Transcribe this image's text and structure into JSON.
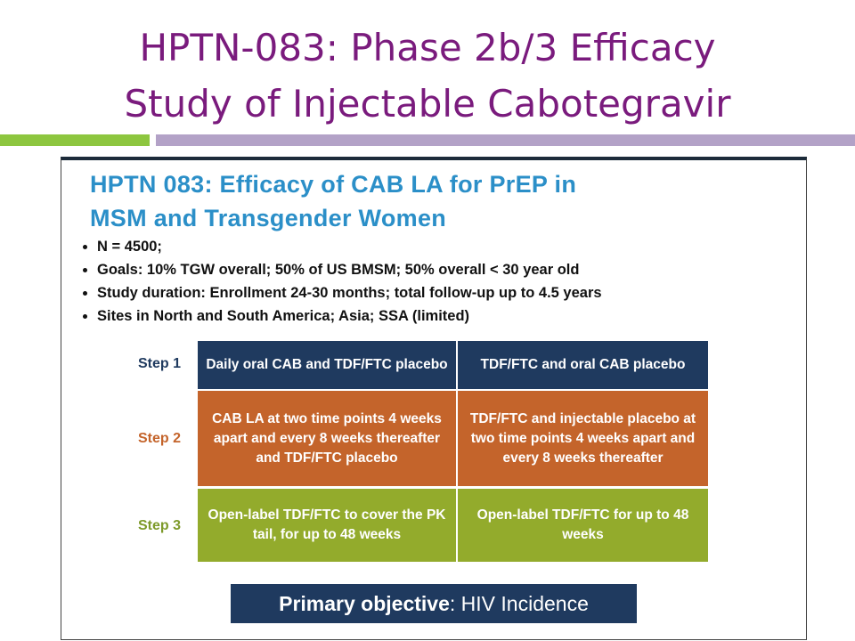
{
  "header": {
    "title_lines": [
      "HPTN-083: Phase 2b/3 Efficacy",
      "Study of Injectable Cabotegravir"
    ]
  },
  "inner": {
    "heading_lines": [
      "HPTN 083:  Efficacy of CAB LA for PrEP in",
      "MSM and Transgender Women"
    ],
    "bullets": [
      "N = 4500;",
      "Goals: 10% TGW overall; 50% of US BMSM; 50% overall < 30 year old",
      "Study duration: Enrollment 24-30 months; total follow-up up to 4.5 years",
      "Sites in North and South America; Asia; SSA (limited)"
    ],
    "table": {
      "rows": [
        [
          "Step 1",
          "Daily oral CAB and TDF/FTC placebo",
          "TDF/FTC and oral CAB placebo"
        ],
        [
          "Step 2",
          "CAB LA at two time points 4 weeks apart and every 8 weeks thereafter and TDF/FTC placebo",
          "TDF/FTC and injectable placebo at two time points 4 weeks apart and every 8 weeks thereafter"
        ],
        [
          "Step 3",
          "Open-label TDF/FTC to cover the PK tail, for up to 48 weeks",
          "Open-label TDF/FTC for up to 48 weeks"
        ]
      ]
    },
    "objective": {
      "label": "Primary objective",
      "text": ": HIV Incidence"
    }
  }
}
